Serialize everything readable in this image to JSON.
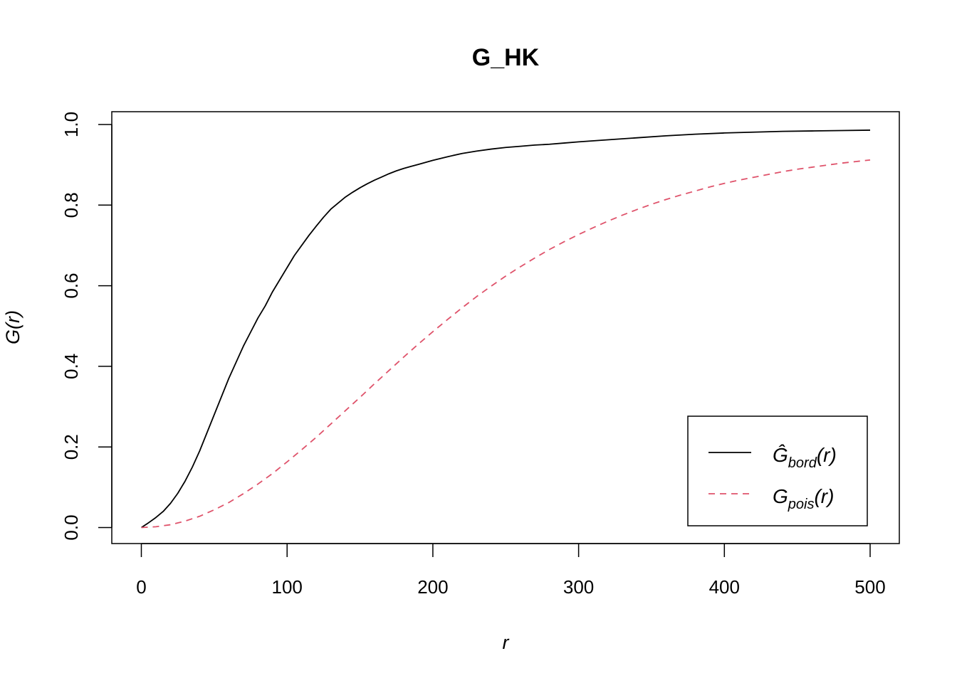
{
  "chart_data": {
    "type": "line",
    "title": "G_HK",
    "xlabel": "r",
    "ylabel": "G(r)",
    "xlim": [
      0,
      500
    ],
    "ylim": [
      0,
      1
    ],
    "x_ticks": [
      "0",
      "100",
      "200",
      "300",
      "400",
      "500"
    ],
    "y_ticks": [
      "0.0",
      "0.2",
      "0.4",
      "0.6",
      "0.8",
      "1.0"
    ],
    "grid": false,
    "legend_position": "bottom-right",
    "series": [
      {
        "name": "Ĝbord(r)",
        "legend_main": "Ĝ",
        "legend_sub": "bord",
        "legend_tail": "(r)",
        "color": "#000000",
        "dash": "solid",
        "x": [
          0,
          5,
          10,
          15,
          20,
          25,
          30,
          35,
          40,
          45,
          50,
          55,
          60,
          65,
          70,
          75,
          80,
          85,
          90,
          95,
          100,
          105,
          110,
          115,
          120,
          125,
          130,
          135,
          140,
          145,
          150,
          155,
          160,
          165,
          170,
          175,
          180,
          185,
          190,
          195,
          200,
          210,
          220,
          230,
          240,
          250,
          260,
          270,
          280,
          290,
          300,
          320,
          340,
          360,
          380,
          400,
          420,
          440,
          460,
          480,
          500
        ],
        "values": [
          0.0,
          0.012,
          0.025,
          0.04,
          0.06,
          0.085,
          0.115,
          0.15,
          0.19,
          0.235,
          0.28,
          0.325,
          0.37,
          0.41,
          0.45,
          0.485,
          0.52,
          0.55,
          0.585,
          0.615,
          0.645,
          0.675,
          0.7,
          0.725,
          0.748,
          0.77,
          0.79,
          0.805,
          0.82,
          0.832,
          0.843,
          0.853,
          0.862,
          0.87,
          0.878,
          0.885,
          0.891,
          0.896,
          0.901,
          0.906,
          0.911,
          0.92,
          0.928,
          0.934,
          0.939,
          0.943,
          0.946,
          0.949,
          0.951,
          0.954,
          0.957,
          0.962,
          0.967,
          0.972,
          0.976,
          0.979,
          0.981,
          0.983,
          0.984,
          0.985,
          0.986
        ]
      },
      {
        "name": "Gpois(r)",
        "legend_main": "G",
        "legend_sub": "pois",
        "legend_tail": "(r)",
        "color": "#DF536B",
        "dash": "dashed",
        "x": [
          0,
          10,
          20,
          30,
          40,
          50,
          60,
          70,
          80,
          90,
          100,
          110,
          120,
          130,
          140,
          150,
          160,
          170,
          180,
          190,
          200,
          210,
          220,
          230,
          240,
          250,
          260,
          270,
          280,
          290,
          300,
          310,
          320,
          330,
          340,
          350,
          360,
          370,
          380,
          390,
          400,
          410,
          420,
          430,
          440,
          450,
          460,
          470,
          480,
          490,
          500
        ],
        "values": [
          0.0,
          0.002,
          0.007,
          0.016,
          0.028,
          0.044,
          0.062,
          0.084,
          0.108,
          0.134,
          0.163,
          0.193,
          0.224,
          0.257,
          0.29,
          0.323,
          0.357,
          0.39,
          0.423,
          0.455,
          0.486,
          0.516,
          0.545,
          0.573,
          0.599,
          0.624,
          0.647,
          0.669,
          0.69,
          0.709,
          0.727,
          0.744,
          0.76,
          0.775,
          0.789,
          0.802,
          0.814,
          0.825,
          0.835,
          0.845,
          0.854,
          0.862,
          0.869,
          0.876,
          0.883,
          0.889,
          0.894,
          0.899,
          0.904,
          0.908,
          0.912
        ]
      }
    ]
  }
}
